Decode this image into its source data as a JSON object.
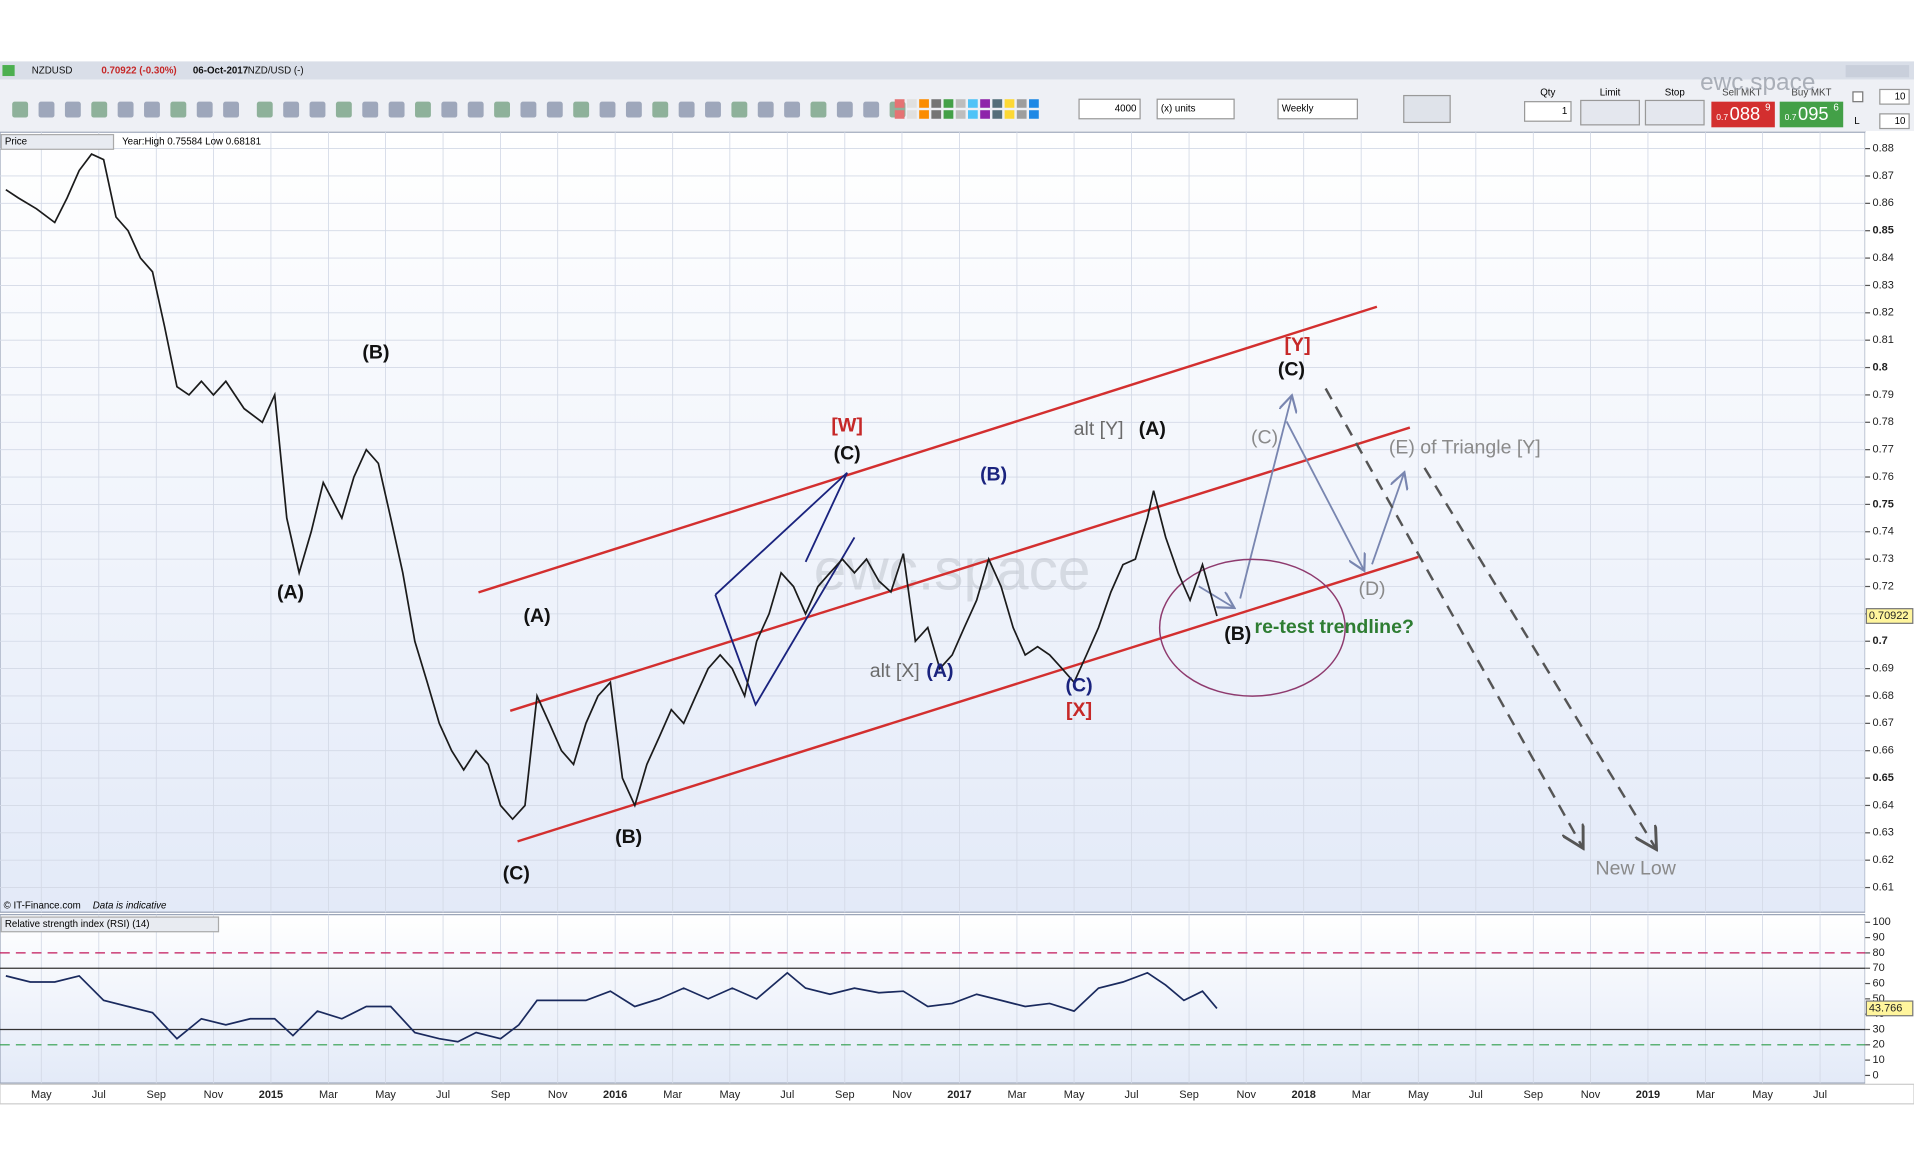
{
  "header": {
    "symbol": "NZDUSD",
    "quote": "0.70922 (-0.30%)",
    "date": "06-Oct-2017",
    "instrument": "NZD/USD (-)"
  },
  "toolbar": {
    "quantity": "4000",
    "units": "(x) units",
    "interval": "Weekly",
    "qty_label": "Qty",
    "qty": "1",
    "limit_label": "Limit",
    "stop_label": "Stop",
    "sell": {
      "label": "Sell MKT",
      "prefix": "0.7",
      "big": "088",
      "pip": "9"
    },
    "buy": {
      "label": "Buy MKT",
      "prefix": "0.7",
      "big": "095",
      "pip": "6"
    },
    "right_inputs": [
      "10",
      "10"
    ],
    "right_flag": "L"
  },
  "info": {
    "year_range": "Year:High 0.75584 Low 0.68181",
    "copyright": "© IT-Finance.com",
    "disclaimer": "Data is indicative"
  },
  "watermarks": [
    "ewc.space",
    "ewc.space"
  ],
  "annotations": [
    {
      "text": "(B)",
      "color": "#111"
    },
    {
      "text": "(A)",
      "color": "#111"
    },
    {
      "text": "(A)",
      "color": "#111"
    },
    {
      "text": "(C)",
      "color": "#111"
    },
    {
      "text": "(B)",
      "color": "#111"
    },
    {
      "text": "[W]",
      "color": "#c62828"
    },
    {
      "text": "(C)",
      "color": "#111"
    },
    {
      "text": "(B)",
      "color": "#1a237e"
    },
    {
      "text": "alt [X]",
      "color": "#6b6b6b"
    },
    {
      "text": "(A)",
      "color": "#1a237e"
    },
    {
      "text": "(C)",
      "color": "#1a237e"
    },
    {
      "text": "[X]",
      "color": "#c62828"
    },
    {
      "text": "alt [Y]",
      "color": "#6b6b6b"
    },
    {
      "text": "(A)",
      "color": "#111"
    },
    {
      "text": "[Y]",
      "color": "#c62828"
    },
    {
      "text": "(C)",
      "color": "#111"
    },
    {
      "text": "(C)",
      "color": "#8a8a8a"
    },
    {
      "text": "(E) of Triangle [Y]",
      "color": "#8a8a8a"
    },
    {
      "text": "(D)",
      "color": "#8a8a8a"
    },
    {
      "text": "(B)",
      "color": "#111"
    },
    {
      "text": "re-test trendline?",
      "color": "#2e7d32"
    },
    {
      "text": "New Low",
      "color": "#8a8a8a"
    }
  ],
  "chart_data": [
    {
      "type": "line",
      "grid": true,
      "x": [
        2014.23,
        2014.266,
        2014.319,
        2014.372,
        2014.408,
        2014.443,
        2014.479,
        2014.514,
        2014.55,
        2014.585,
        2014.621,
        2014.656,
        2014.691,
        2014.727,
        2014.762,
        2014.798,
        2014.833,
        2014.869,
        2014.922,
        2014.975,
        2015.011,
        2015.046,
        2015.082,
        2015.117,
        2015.152,
        2015.206,
        2015.241,
        2015.277,
        2015.312,
        2015.348,
        2015.383,
        2015.418,
        2015.454,
        2015.489,
        2015.525,
        2015.56,
        2015.596,
        2015.631,
        2015.667,
        2015.702,
        2015.738,
        2015.773,
        2015.809,
        2015.844,
        2015.879,
        2015.915,
        2015.95,
        2015.986,
        2016.021,
        2016.057,
        2016.092,
        2016.128,
        2016.163,
        2016.199,
        2016.234,
        2016.27,
        2016.305,
        2016.34,
        2016.376,
        2016.411,
        2016.447,
        2016.482,
        2016.518,
        2016.553,
        2016.589,
        2016.624,
        2016.66,
        2016.695,
        2016.73,
        2016.766,
        2016.801,
        2016.837,
        2016.872,
        2016.908,
        2016.943,
        2016.979,
        2017.014,
        2017.05,
        2017.085,
        2017.121,
        2017.156,
        2017.191,
        2017.227,
        2017.262,
        2017.298,
        2017.333,
        2017.369,
        2017.404,
        2017.44,
        2017.475,
        2017.511,
        2017.546,
        2017.564,
        2017.599,
        2017.635,
        2017.67,
        2017.706,
        2017.748
      ],
      "series": [
        {
          "name": "Price",
          "color": "#1b1b1b",
          "values": [
            0.865,
            0.862,
            0.858,
            0.853,
            0.862,
            0.872,
            0.878,
            0.876,
            0.855,
            0.85,
            0.84,
            0.835,
            0.815,
            0.793,
            0.79,
            0.795,
            0.79,
            0.795,
            0.785,
            0.78,
            0.79,
            0.745,
            0.725,
            0.74,
            0.758,
            0.745,
            0.76,
            0.77,
            0.765,
            0.745,
            0.725,
            0.7,
            0.685,
            0.67,
            0.66,
            0.653,
            0.66,
            0.655,
            0.64,
            0.635,
            0.64,
            0.68,
            0.67,
            0.66,
            0.655,
            0.67,
            0.68,
            0.685,
            0.65,
            0.64,
            0.655,
            0.665,
            0.675,
            0.67,
            0.68,
            0.69,
            0.695,
            0.69,
            0.68,
            0.7,
            0.71,
            0.725,
            0.72,
            0.71,
            0.72,
            0.725,
            0.73,
            0.725,
            0.73,
            0.722,
            0.718,
            0.732,
            0.7,
            0.705,
            0.69,
            0.695,
            0.705,
            0.715,
            0.73,
            0.72,
            0.705,
            0.695,
            0.698,
            0.695,
            0.69,
            0.685,
            0.695,
            0.705,
            0.718,
            0.728,
            0.73,
            0.745,
            0.755,
            0.738,
            0.725,
            0.715,
            0.728,
            0.70922
          ]
        }
      ],
      "xlim": [
        2014.213,
        2019.631
      ],
      "xticks": [
        {
          "value": 2014.333,
          "label": "May"
        },
        {
          "value": 2014.5,
          "label": "Jul"
        },
        {
          "value": 2014.667,
          "label": "Sep"
        },
        {
          "value": 2014.833,
          "label": "Nov"
        },
        2015,
        {
          "value": 2015.167,
          "label": "Mar"
        },
        {
          "value": 2015.333,
          "label": "May"
        },
        {
          "value": 2015.5,
          "label": "Jul"
        },
        {
          "value": 2015.667,
          "label": "Sep"
        },
        {
          "value": 2015.833,
          "label": "Nov"
        },
        2016,
        {
          "value": 2016.167,
          "label": "Mar"
        },
        {
          "value": 2016.333,
          "label": "May"
        },
        {
          "value": 2016.5,
          "label": "Jul"
        },
        {
          "value": 2016.667,
          "label": "Sep"
        },
        {
          "value": 2016.833,
          "label": "Nov"
        },
        2017,
        {
          "value": 2017.167,
          "label": "Mar"
        },
        {
          "value": 2017.333,
          "label": "May"
        },
        {
          "value": 2017.5,
          "label": "Jul"
        },
        {
          "value": 2017.667,
          "label": "Sep"
        },
        {
          "value": 2017.833,
          "label": "Nov"
        },
        2018,
        {
          "value": 2018.167,
          "label": "Mar"
        },
        {
          "value": 2018.333,
          "label": "May"
        },
        {
          "value": 2018.5,
          "label": "Jul"
        },
        {
          "value": 2018.667,
          "label": "Sep"
        },
        {
          "value": 2018.833,
          "label": "Nov"
        },
        2019,
        {
          "value": 2019.167,
          "label": "Mar"
        },
        {
          "value": 2019.333,
          "label": "May"
        },
        {
          "value": 2019.5,
          "label": "Jul"
        }
      ],
      "ylim": [
        0.601,
        0.886
      ],
      "yticks": [
        0.61,
        0.62,
        0.63,
        0.64,
        0.65,
        0.66,
        0.67,
        0.68,
        0.69,
        0.7,
        0.71,
        0.72,
        0.73,
        0.74,
        0.75,
        0.76,
        0.77,
        0.78,
        0.79,
        0.8,
        0.81,
        0.82,
        0.83,
        0.84,
        0.85,
        0.86,
        0.87,
        0.88
      ]
    },
    {
      "type": "line",
      "x": [
        2014.23,
        2014.301,
        2014.372,
        2014.443,
        2014.514,
        2014.585,
        2014.656,
        2014.727,
        2014.798,
        2014.869,
        2014.94,
        2015.011,
        2015.064,
        2015.135,
        2015.206,
        2015.277,
        2015.348,
        2015.418,
        2015.489,
        2015.543,
        2015.596,
        2015.667,
        2015.72,
        2015.773,
        2015.844,
        2015.915,
        2015.986,
        2016.057,
        2016.128,
        2016.199,
        2016.27,
        2016.34,
        2016.411,
        2016.5,
        2016.553,
        2016.624,
        2016.695,
        2016.766,
        2016.837,
        2016.908,
        2016.979,
        2017.05,
        2017.121,
        2017.191,
        2017.262,
        2017.333,
        2017.404,
        2017.475,
        2017.546,
        2017.599,
        2017.652,
        2017.706,
        2017.748
      ],
      "series": [
        {
          "name": "Relative strength index (RSI) (14)",
          "color": "#1a2a5e",
          "values": [
            65,
            61,
            61,
            65,
            49,
            45,
            41,
            24,
            37,
            33,
            37,
            37,
            26,
            42,
            37,
            45,
            45,
            28,
            24,
            22,
            28,
            24,
            33,
            49,
            49,
            49,
            55,
            45,
            50,
            57,
            50,
            57,
            50,
            67,
            57,
            53,
            57,
            54,
            55,
            45,
            47,
            53,
            49,
            45,
            47,
            42,
            57,
            61,
            67,
            59,
            49,
            55,
            43.766
          ]
        }
      ],
      "xlim": [
        2014.213,
        2019.631
      ],
      "ylim": [
        -5,
        105
      ],
      "yticks": [
        0,
        10,
        20,
        30,
        40,
        50,
        60,
        70,
        80,
        90,
        100
      ],
      "levels": [
        {
          "value": 80,
          "color": "#c2185b",
          "dash": true
        },
        {
          "value": 70,
          "color": "#333",
          "dash": false
        },
        {
          "value": 30,
          "color": "#333",
          "dash": false
        },
        {
          "value": 20,
          "color": "#2e9d4a",
          "dash": true
        }
      ]
    }
  ]
}
